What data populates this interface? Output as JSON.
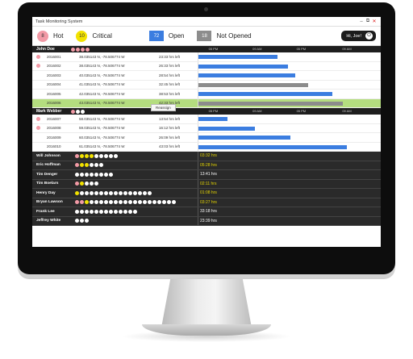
{
  "window": {
    "title": "Task Monitoring System",
    "minimize": "–",
    "restore": "⧉",
    "close": "✕"
  },
  "summary": {
    "hot": {
      "count": "8",
      "label": "Hot",
      "color": "#f29aa6"
    },
    "critical": {
      "count": "10",
      "label": "Critical",
      "color": "#f2e200"
    },
    "open": {
      "count": "72",
      "label": "Open",
      "color": "#3b7de0"
    },
    "not_opened": {
      "count": "18",
      "label": "Not Opened",
      "color": "#8c8c8c"
    },
    "greeting": "Hi, Joe!",
    "power_icon": "⏻"
  },
  "timeline_ticks": [
    "05 PM",
    "09 AM",
    "05 PM",
    "09 AM"
  ],
  "groups": [
    {
      "name": "John Doe",
      "dots": [
        "#f29aa6",
        "#f29aa6",
        "#f29aa6",
        "#f29aa6"
      ],
      "tasks": [
        {
          "id": "2016001",
          "hot": true,
          "coords": "38.035143 N, -78.506774 W",
          "left": "23:33  hrs left",
          "bar_start": 0.0,
          "bar_end": 0.43,
          "bar_color": "#3b7de0"
        },
        {
          "id": "2016002",
          "hot": true,
          "coords": "38.035143 N, -78.506774 W",
          "left": "26:33  hrs left",
          "bar_start": 0.0,
          "bar_end": 0.49,
          "bar_color": "#3b7de0"
        },
        {
          "id": "2016003",
          "hot": false,
          "coords": "40.035143 N, -78.506774 W",
          "left": "28:54 hrs left",
          "bar_start": 0.0,
          "bar_end": 0.53,
          "bar_color": "#3b7de0"
        },
        {
          "id": "2016004",
          "hot": false,
          "coords": "41.035143 N, -78.506774 W",
          "left": "32:45 hrs left",
          "bar_start": 0.0,
          "bar_end": 0.6,
          "bar_color": "#8c8c8c"
        },
        {
          "id": "2016005",
          "hot": false,
          "coords": "42.035143 N, -78.506774 W",
          "left": "38:53 hrs left",
          "bar_start": 0.0,
          "bar_end": 0.73,
          "bar_color": "#3b7de0"
        },
        {
          "id": "2016006",
          "hot": false,
          "coords": "43.035143 N, -78.506774 W",
          "left": "42:33 hrs left",
          "bar_start": 0.0,
          "bar_end": 0.79,
          "bar_color": "#8c8c8c",
          "selected": true
        }
      ]
    },
    {
      "name": "Mark Webber",
      "dots": [
        "#f29aa6",
        "#ffffff",
        "#ffffff"
      ],
      "tasks": [
        {
          "id": "2016007",
          "hot": true,
          "coords": "58.035143 N, -78.506774 W",
          "left": "13:54 hrs left",
          "bar_start": 0.0,
          "bar_end": 0.16,
          "bar_color": "#3b7de0"
        },
        {
          "id": "2016008",
          "hot": true,
          "coords": "59.035143 N, -78.506774 W",
          "left": "16:12 hrs left",
          "bar_start": 0.0,
          "bar_end": 0.31,
          "bar_color": "#3b7de0"
        },
        {
          "id": "2016009",
          "hot": false,
          "coords": "60.035143 N, -78.506774 W",
          "left": "26:09 hrs left",
          "bar_start": 0.0,
          "bar_end": 0.5,
          "bar_color": "#3b7de0"
        },
        {
          "id": "2016010",
          "hot": false,
          "coords": "61.035143 N, -78.506774 W",
          "left": "43:03 hrs left",
          "bar_start": 0.0,
          "bar_end": 0.81,
          "bar_color": "#3b7de0"
        }
      ]
    }
  ],
  "reassign_label": "Reassign",
  "employees": [
    {
      "name": "Will Johnson",
      "time": "03:32 hrs",
      "time_color": "#e8d800",
      "dots": [
        "p",
        "y",
        "y",
        "y",
        "w",
        "w",
        "w",
        "w",
        "w"
      ]
    },
    {
      "name": "Eric Hoffman",
      "time": "05:28 hrs",
      "time_color": "#e8d800",
      "dots": [
        "p",
        "y",
        "y",
        "w",
        "w",
        "w"
      ]
    },
    {
      "name": "Tim Denger",
      "time": "13:41 hrs",
      "time_color": "#ffffff",
      "dots": [
        "w",
        "w",
        "w",
        "w",
        "w",
        "w",
        "w",
        "w"
      ]
    },
    {
      "name": "Tim Boelars",
      "time": "02:11 hrs",
      "time_color": "#e8d800",
      "dots": [
        "p",
        "y",
        "w",
        "w",
        "w"
      ]
    },
    {
      "name": "Henry Day",
      "time": "01:08 hrs",
      "time_color": "#e8d800",
      "dots": [
        "y",
        "w",
        "w",
        "w",
        "w",
        "w",
        "w",
        "w",
        "w",
        "w",
        "w",
        "w",
        "w",
        "w",
        "w",
        "w"
      ]
    },
    {
      "name": "Bryan Lawson",
      "time": "03:27 hrs",
      "time_color": "#e8d800",
      "dots": [
        "p",
        "p",
        "y",
        "w",
        "w",
        "w",
        "w",
        "w",
        "w",
        "w",
        "w",
        "w",
        "w",
        "w",
        "w",
        "w",
        "w",
        "w",
        "w",
        "w",
        "w"
      ]
    },
    {
      "name": "Frank Lee",
      "time": "33:18 hrs",
      "time_color": "#ffffff",
      "dots": [
        "w",
        "w",
        "w",
        "w",
        "w",
        "w",
        "w",
        "w",
        "w",
        "w",
        "w",
        "w",
        "w"
      ]
    },
    {
      "name": "Jeffrey White",
      "time": "23:39 hrs",
      "time_color": "#ffffff",
      "dots": [
        "w",
        "w",
        "w"
      ]
    }
  ],
  "dot_colors": {
    "p": "#f29aa6",
    "y": "#f2e200",
    "w": "#ffffff"
  }
}
